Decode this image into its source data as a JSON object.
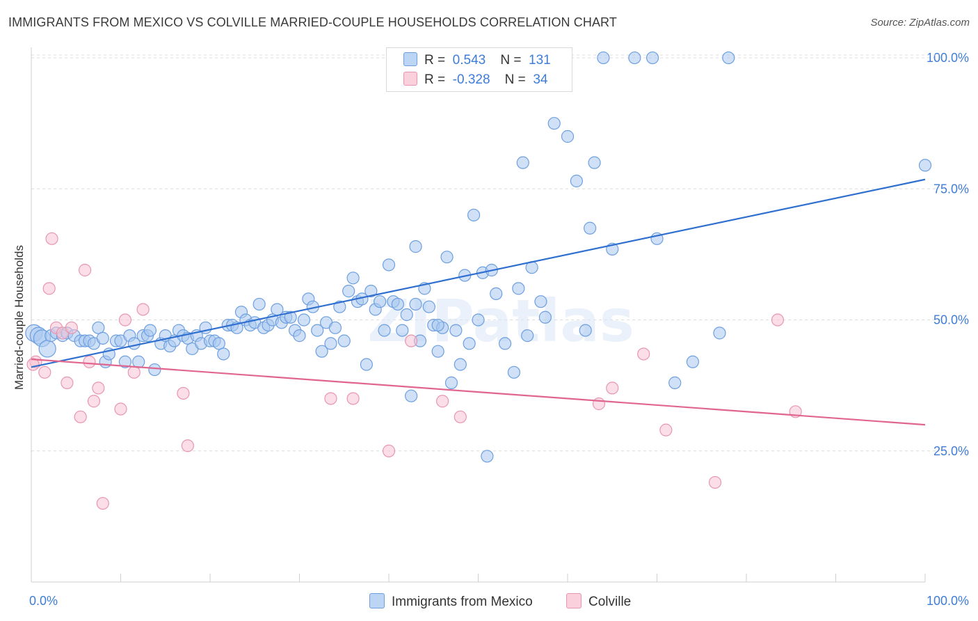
{
  "title": "IMMIGRANTS FROM MEXICO VS COLVILLE MARRIED-COUPLE HOUSEHOLDS CORRELATION CHART",
  "source": "Source: ZipAtlas.com",
  "watermark": "ZIPatlas",
  "legend": {
    "rows": [
      {
        "r_label": "R =",
        "r_value": "0.543",
        "n_label": "N =",
        "n_value": "131"
      },
      {
        "r_label": "R =",
        "r_value": "-0.328",
        "n_label": "N =",
        "n_value": "34"
      }
    ]
  },
  "colors": {
    "blue_fill": "#a9c8f0",
    "blue_stroke": "#6d9fe0",
    "blue_line": "#2f6fd0",
    "pink_fill": "#f7c3d3",
    "pink_stroke": "#e896b0",
    "pink_line": "#e0668f",
    "axis_label": "#3d7dd8",
    "grid": "#dcdcdc"
  },
  "chart_data": {
    "type": "scatter",
    "xlabel": "",
    "ylabel": "Married-couple Households",
    "x_tick_labels": {
      "left": "0.0%",
      "right": "100.0%"
    },
    "y_tick_labels": [
      {
        "value": 100,
        "label": "100.0%"
      },
      {
        "value": 75,
        "label": "75.0%"
      },
      {
        "value": 50,
        "label": "50.0%"
      },
      {
        "value": 25,
        "label": "25.0%"
      }
    ],
    "xlim": [
      0,
      100
    ],
    "ylim": [
      0,
      102
    ],
    "grid": true,
    "series": [
      {
        "name": "Immigrants from Mexico",
        "color": "#6d9fe0",
        "trend": {
          "x0": 0,
          "y0": 41.0,
          "x1": 100,
          "y1": 76.8
        },
        "points": [
          [
            0.3,
            47.5
          ],
          [
            0.8,
            47.0
          ],
          [
            1.2,
            46.5
          ],
          [
            1.8,
            44.5
          ],
          [
            2.2,
            47.0
          ],
          [
            2.8,
            47.5
          ],
          [
            3.5,
            47.0
          ],
          [
            4.0,
            47.5
          ],
          [
            4.8,
            47.0
          ],
          [
            5.5,
            46.0
          ],
          [
            6.0,
            46.0
          ],
          [
            6.5,
            46.0
          ],
          [
            7.0,
            45.5
          ],
          [
            7.5,
            48.5
          ],
          [
            8.0,
            46.5
          ],
          [
            8.3,
            42.0
          ],
          [
            8.7,
            43.5
          ],
          [
            9.5,
            46.0
          ],
          [
            10.0,
            46.0
          ],
          [
            10.5,
            42.0
          ],
          [
            11.0,
            47.0
          ],
          [
            11.5,
            45.5
          ],
          [
            12.0,
            42.0
          ],
          [
            12.5,
            47.0
          ],
          [
            13.0,
            47.0
          ],
          [
            13.3,
            48.0
          ],
          [
            13.8,
            40.5
          ],
          [
            14.5,
            45.5
          ],
          [
            15.0,
            47.0
          ],
          [
            15.5,
            45.0
          ],
          [
            16.0,
            46.0
          ],
          [
            16.5,
            48.0
          ],
          [
            17.0,
            47.0
          ],
          [
            17.5,
            46.5
          ],
          [
            18.0,
            44.5
          ],
          [
            18.5,
            47.0
          ],
          [
            19.0,
            45.5
          ],
          [
            19.5,
            48.5
          ],
          [
            20.0,
            46.0
          ],
          [
            20.5,
            46.0
          ],
          [
            21.0,
            45.5
          ],
          [
            21.5,
            43.5
          ],
          [
            22.0,
            49.0
          ],
          [
            22.5,
            49.0
          ],
          [
            23.0,
            48.5
          ],
          [
            23.5,
            51.5
          ],
          [
            24.0,
            50.0
          ],
          [
            24.5,
            49.0
          ],
          [
            25.0,
            49.5
          ],
          [
            25.5,
            53.0
          ],
          [
            26.0,
            48.5
          ],
          [
            26.5,
            49.0
          ],
          [
            27.0,
            50.0
          ],
          [
            27.5,
            52.0
          ],
          [
            28.0,
            49.5
          ],
          [
            28.5,
            50.5
          ],
          [
            29.0,
            50.5
          ],
          [
            29.5,
            48.0
          ],
          [
            30.0,
            47.0
          ],
          [
            30.5,
            50.0
          ],
          [
            31.0,
            54.0
          ],
          [
            31.5,
            52.5
          ],
          [
            32.0,
            48.0
          ],
          [
            32.5,
            44.0
          ],
          [
            33.0,
            49.5
          ],
          [
            33.5,
            45.5
          ],
          [
            34.0,
            48.5
          ],
          [
            34.5,
            52.5
          ],
          [
            35.0,
            46.0
          ],
          [
            35.5,
            55.5
          ],
          [
            36.0,
            58.0
          ],
          [
            36.5,
            53.5
          ],
          [
            37.0,
            54.0
          ],
          [
            37.5,
            41.5
          ],
          [
            38.0,
            55.5
          ],
          [
            38.5,
            52.0
          ],
          [
            39.0,
            53.5
          ],
          [
            39.5,
            48.0
          ],
          [
            40.0,
            60.5
          ],
          [
            40.5,
            53.5
          ],
          [
            41.0,
            53.0
          ],
          [
            41.5,
            48.0
          ],
          [
            42.0,
            51.0
          ],
          [
            42.5,
            35.5
          ],
          [
            43.0,
            64.0
          ],
          [
            43.5,
            46.0
          ],
          [
            44.0,
            56.0
          ],
          [
            44.5,
            52.5
          ],
          [
            45.0,
            49.0
          ],
          [
            45.5,
            44.0
          ],
          [
            46.0,
            48.5
          ],
          [
            46.5,
            62.0
          ],
          [
            47.0,
            38.0
          ],
          [
            47.5,
            48.0
          ],
          [
            48.0,
            41.5
          ],
          [
            48.5,
            58.5
          ],
          [
            49.0,
            45.5
          ],
          [
            49.5,
            70.0
          ],
          [
            50.0,
            50.0
          ],
          [
            50.5,
            59.0
          ],
          [
            51.0,
            24.0
          ],
          [
            51.5,
            59.5
          ],
          [
            52.0,
            55.0
          ],
          [
            53.0,
            45.5
          ],
          [
            54.0,
            40.0
          ],
          [
            54.5,
            56.0
          ],
          [
            55.0,
            80.0
          ],
          [
            55.5,
            47.0
          ],
          [
            56.0,
            60.0
          ],
          [
            56.5,
            100.0
          ],
          [
            57.0,
            53.5
          ],
          [
            57.5,
            50.5
          ],
          [
            58.5,
            87.5
          ],
          [
            60.0,
            85.0
          ],
          [
            61.0,
            76.5
          ],
          [
            62.0,
            48.0
          ],
          [
            62.5,
            67.5
          ],
          [
            63.0,
            80.0
          ],
          [
            64.0,
            100.0
          ],
          [
            65.0,
            63.5
          ],
          [
            67.5,
            100.0
          ],
          [
            69.5,
            100.0
          ],
          [
            70.0,
            65.5
          ],
          [
            72.0,
            38.0
          ],
          [
            74.0,
            42.0
          ],
          [
            77.0,
            47.5
          ],
          [
            78.0,
            100.0
          ],
          [
            100.0,
            79.5
          ],
          [
            59.5,
            100.0
          ],
          [
            45.5,
            49.0
          ],
          [
            43.0,
            53.0
          ]
        ]
      },
      {
        "name": "Colville",
        "color": "#e896b0",
        "trend": {
          "x0": 0,
          "y0": 42.5,
          "x1": 100,
          "y1": 30.0
        },
        "points": [
          [
            0.5,
            42.0
          ],
          [
            1.5,
            40.0
          ],
          [
            2.0,
            56.0
          ],
          [
            2.3,
            65.5
          ],
          [
            2.8,
            48.5
          ],
          [
            3.5,
            47.5
          ],
          [
            4.0,
            38.0
          ],
          [
            4.5,
            48.5
          ],
          [
            5.5,
            31.5
          ],
          [
            6.0,
            59.5
          ],
          [
            6.5,
            42.0
          ],
          [
            7.0,
            34.5
          ],
          [
            7.5,
            37.0
          ],
          [
            8.0,
            15.0
          ],
          [
            10.0,
            33.0
          ],
          [
            10.5,
            50.0
          ],
          [
            11.5,
            40.0
          ],
          [
            12.5,
            52.0
          ],
          [
            17.0,
            36.0
          ],
          [
            17.5,
            26.0
          ],
          [
            33.5,
            35.0
          ],
          [
            36.0,
            35.0
          ],
          [
            40.0,
            25.0
          ],
          [
            42.5,
            46.0
          ],
          [
            46.0,
            34.5
          ],
          [
            48.0,
            31.5
          ],
          [
            63.5,
            34.0
          ],
          [
            65.0,
            37.0
          ],
          [
            68.5,
            43.5
          ],
          [
            71.0,
            29.0
          ],
          [
            76.5,
            19.0
          ],
          [
            83.5,
            50.0
          ],
          [
            85.5,
            32.5
          ],
          [
            0.2,
            41.5
          ]
        ]
      }
    ]
  },
  "bottom_legend": {
    "items": [
      {
        "label": "Immigrants from Mexico"
      },
      {
        "label": "Colville"
      }
    ]
  }
}
